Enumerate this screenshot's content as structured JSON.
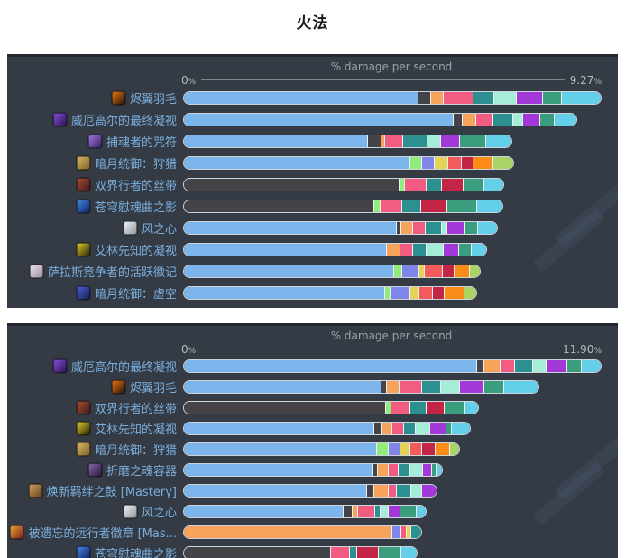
{
  "page": {
    "title": "火法",
    "pct": "%"
  },
  "colors": {
    "blue": "#7cb5ec",
    "dark": "#434348",
    "orange": "#f7a35c",
    "pink": "#f15c80",
    "teal": "#2b908f",
    "mint": "#a5ecd9",
    "purple": "#a338d8",
    "seagreen": "#3a9d7e",
    "skyblue": "#64cfe9",
    "lgreen": "#90ed7d",
    "periwinkle": "#8085e9",
    "yellow": "#e4d354",
    "salmon": "#f45b5b",
    "crimson": "#c22546",
    "orange2": "#fb8c17",
    "ygreen": "#aad566"
  },
  "chart_data": [
    {
      "type": "bar",
      "orientation": "horizontal-stacked",
      "axis": {
        "title": "% damage per second",
        "min_label": "0",
        "max_label": "9.27",
        "max": 9.27
      },
      "legend": "none",
      "rows": [
        {
          "label": "烬翼羽毛",
          "icon": {
            "name": "ember-feather",
            "c1": "#1c120a",
            "c2": "#f07818"
          },
          "segments": [
            {
              "c": "blue",
              "v": 5.29
            },
            {
              "c": "dark",
              "v": 0.26
            },
            {
              "c": "orange",
              "v": 0.27
            },
            {
              "c": "pink",
              "v": 0.65
            },
            {
              "c": "teal",
              "v": 0.45
            },
            {
              "c": "mint",
              "v": 0.49
            },
            {
              "c": "purple",
              "v": 0.57
            },
            {
              "c": "seagreen",
              "v": 0.42
            },
            {
              "c": "skyblue",
              "v": 0.87
            }
          ]
        },
        {
          "label": "威厄高尔的最终凝视",
          "icon": {
            "name": "veil-gaze",
            "c1": "#251347",
            "c2": "#8a4de0"
          },
          "segments": [
            {
              "c": "blue",
              "v": 6.1
            },
            {
              "c": "dark",
              "v": 0.17
            },
            {
              "c": "orange",
              "v": 0.3
            },
            {
              "c": "pink",
              "v": 0.37
            },
            {
              "c": "teal",
              "v": 0.42
            },
            {
              "c": "mint",
              "v": 0.21
            },
            {
              "c": "purple",
              "v": 0.37
            },
            {
              "c": "seagreen",
              "v": 0.3
            },
            {
              "c": "skyblue",
              "v": 0.5
            }
          ]
        },
        {
          "label": "捕魂者的咒符",
          "icon": {
            "name": "soulcatcher-charm",
            "c1": "#33205a",
            "c2": "#a678e8"
          },
          "segments": [
            {
              "c": "blue",
              "v": 4.16
            },
            {
              "c": "dark",
              "v": 0.3
            },
            {
              "c": "orange",
              "v": 0.05
            },
            {
              "c": "pink",
              "v": 0.39
            },
            {
              "c": "teal",
              "v": 0.54
            },
            {
              "c": "mint",
              "v": 0.3
            },
            {
              "c": "purple",
              "v": 0.4
            },
            {
              "c": "seagreen",
              "v": 0.57
            },
            {
              "c": "skyblue",
              "v": 0.59
            }
          ]
        },
        {
          "label": "暗月统御：狩猎",
          "icon": {
            "name": "darkmoon-hunt",
            "c1": "#7a5c28",
            "c2": "#e0bc66"
          },
          "segments": [
            {
              "c": "blue",
              "v": 5.13
            },
            {
              "c": "lgreen",
              "v": 0.24
            },
            {
              "c": "periwinkle",
              "v": 0.26
            },
            {
              "c": "yellow",
              "v": 0.28
            },
            {
              "c": "salmon",
              "v": 0.3
            },
            {
              "c": "crimson",
              "v": 0.24
            },
            {
              "c": "orange2",
              "v": 0.44
            },
            {
              "c": "ygreen",
              "v": 0.44
            }
          ]
        },
        {
          "label": "双界行者的丝带",
          "icon": {
            "name": "walker-ribbon",
            "c1": "#401821",
            "c2": "#a84f2e"
          },
          "segments": [
            {
              "c": "dark",
              "v": 4.86
            },
            {
              "c": "lgreen",
              "v": 0.1
            },
            {
              "c": "pink",
              "v": 0.47
            },
            {
              "c": "teal",
              "v": 0.34
            },
            {
              "c": "crimson",
              "v": 0.47
            },
            {
              "c": "seagreen",
              "v": 0.44
            },
            {
              "c": "skyblue",
              "v": 0.44
            }
          ]
        },
        {
          "label": "苍穹慰魂曲之影",
          "icon": {
            "name": "requiem-shadow",
            "c1": "#0b1f5e",
            "c2": "#4a8ae8"
          },
          "segments": [
            {
              "c": "dark",
              "v": 4.29
            },
            {
              "c": "lgreen",
              "v": 0.13
            },
            {
              "c": "pink",
              "v": 0.47
            },
            {
              "c": "teal",
              "v": 0.4
            },
            {
              "c": "crimson",
              "v": 0.57
            },
            {
              "c": "seagreen",
              "v": 0.67
            },
            {
              "c": "skyblue",
              "v": 0.56
            }
          ]
        },
        {
          "label": "风之心",
          "icon": {
            "name": "wind-heart",
            "c1": "#8d9399",
            "c2": "#f2f5f8"
          },
          "segments": [
            {
              "c": "blue",
              "v": 4.83
            },
            {
              "c": "dark",
              "v": 0.08
            },
            {
              "c": "orange",
              "v": 0.26
            },
            {
              "c": "pink",
              "v": 0.26
            },
            {
              "c": "teal",
              "v": 0.35
            },
            {
              "c": "mint",
              "v": 0.1
            },
            {
              "c": "purple",
              "v": 0.4
            },
            {
              "c": "seagreen",
              "v": 0.27
            },
            {
              "c": "skyblue",
              "v": 0.42
            }
          ]
        },
        {
          "label": "艾林先知的凝视",
          "icon": {
            "name": "seer-gaze",
            "c1": "#201d06",
            "c2": "#ecd22a"
          },
          "segments": [
            {
              "c": "blue",
              "v": 4.59
            },
            {
              "c": "orange",
              "v": 0.3
            },
            {
              "c": "pink",
              "v": 0.27
            },
            {
              "c": "teal",
              "v": 0.27
            },
            {
              "c": "mint",
              "v": 0.37
            },
            {
              "c": "purple",
              "v": 0.34
            },
            {
              "c": "seagreen",
              "v": 0.27
            },
            {
              "c": "skyblue",
              "v": 0.32
            }
          ]
        },
        {
          "label": "萨拉斯竞争者的活跃徽记",
          "icon": {
            "name": "contender-sigil",
            "c1": "#9c8c9c",
            "c2": "#f0e4f0"
          },
          "segments": [
            {
              "c": "blue",
              "v": 4.76
            },
            {
              "c": "lgreen",
              "v": 0.17
            },
            {
              "c": "periwinkle",
              "v": 0.36
            },
            {
              "c": "yellow",
              "v": 0.11
            },
            {
              "c": "salmon",
              "v": 0.39
            },
            {
              "c": "crimson",
              "v": 0.25
            },
            {
              "c": "orange2",
              "v": 0.32
            },
            {
              "c": "ygreen",
              "v": 0.24
            }
          ]
        },
        {
          "label": "暗月统御：虚空",
          "icon": {
            "name": "darkmoon-void",
            "c1": "#141d44",
            "c2": "#5060e0"
          },
          "segments": [
            {
              "c": "blue",
              "v": 4.56
            },
            {
              "c": "lgreen",
              "v": 0.1
            },
            {
              "c": "periwinkle",
              "v": 0.44
            },
            {
              "c": "yellow",
              "v": 0.19
            },
            {
              "c": "salmon",
              "v": 0.28
            },
            {
              "c": "crimson",
              "v": 0.24
            },
            {
              "c": "orange2",
              "v": 0.44
            },
            {
              "c": "ygreen",
              "v": 0.26
            }
          ]
        }
      ]
    },
    {
      "type": "bar",
      "orientation": "horizontal-stacked",
      "axis": {
        "title": "% damage per second",
        "min_label": "0",
        "max_label": "11.90",
        "max": 11.9
      },
      "legend": "none",
      "rows": [
        {
          "label": "威厄高尔的最终凝视",
          "icon": {
            "name": "veil-gaze",
            "c1": "#251347",
            "c2": "#8a4de0"
          },
          "segments": [
            {
              "c": "blue",
              "v": 8.49
            },
            {
              "c": "dark",
              "v": 0.18
            },
            {
              "c": "orange",
              "v": 0.45
            },
            {
              "c": "pink",
              "v": 0.4
            },
            {
              "c": "teal",
              "v": 0.49
            },
            {
              "c": "mint",
              "v": 0.36
            },
            {
              "c": "purple",
              "v": 0.58
            },
            {
              "c": "seagreen",
              "v": 0.4
            },
            {
              "c": "skyblue",
              "v": 0.55
            }
          ]
        },
        {
          "label": "烬翼羽毛",
          "icon": {
            "name": "ember-feather",
            "c1": "#1c120a",
            "c2": "#f07818"
          },
          "segments": [
            {
              "c": "blue",
              "v": 5.73
            },
            {
              "c": "dark",
              "v": 0.13
            },
            {
              "c": "orange",
              "v": 0.36
            },
            {
              "c": "pink",
              "v": 0.62
            },
            {
              "c": "teal",
              "v": 0.53
            },
            {
              "c": "mint",
              "v": 0.53
            },
            {
              "c": "purple",
              "v": 0.67
            },
            {
              "c": "seagreen",
              "v": 0.55
            },
            {
              "c": "skyblue",
              "v": 1.01
            }
          ]
        },
        {
          "label": "双界行者的丝带",
          "icon": {
            "name": "walker-ribbon",
            "c1": "#401821",
            "c2": "#a84f2e"
          },
          "segments": [
            {
              "c": "dark",
              "v": 5.86
            },
            {
              "c": "lgreen",
              "v": 0.13
            },
            {
              "c": "pink",
              "v": 0.53
            },
            {
              "c": "teal",
              "v": 0.45
            },
            {
              "c": "crimson",
              "v": 0.49
            },
            {
              "c": "seagreen",
              "v": 0.58
            },
            {
              "c": "skyblue",
              "v": 0.38
            }
          ]
        },
        {
          "label": "艾林先知的凝视",
          "icon": {
            "name": "seer-gaze",
            "c1": "#201d06",
            "c2": "#ecd22a"
          },
          "segments": [
            {
              "c": "blue",
              "v": 5.55
            },
            {
              "c": "dark",
              "v": 0.22
            },
            {
              "c": "orange",
              "v": 0.27
            },
            {
              "c": "pink",
              "v": 0.31
            },
            {
              "c": "teal",
              "v": 0.31
            },
            {
              "c": "mint",
              "v": 0.4
            },
            {
              "c": "purple",
              "v": 0.45
            },
            {
              "c": "seagreen",
              "v": 0.13
            },
            {
              "c": "skyblue",
              "v": 0.53
            }
          ]
        },
        {
          "label": "暗月统御：狩猎",
          "icon": {
            "name": "darkmoon-hunt",
            "c1": "#7a5c28",
            "c2": "#e0bc66"
          },
          "segments": [
            {
              "c": "blue",
              "v": 5.64
            },
            {
              "c": "lgreen",
              "v": 0.31
            },
            {
              "c": "periwinkle",
              "v": 0.31
            },
            {
              "c": "yellow",
              "v": 0.27
            },
            {
              "c": "salmon",
              "v": 0.31
            },
            {
              "c": "crimson",
              "v": 0.36
            },
            {
              "c": "orange2",
              "v": 0.4
            },
            {
              "c": "ygreen",
              "v": 0.27
            }
          ]
        },
        {
          "label": "折磨之魂容器",
          "icon": {
            "name": "soul-vessel",
            "c1": "#281638",
            "c2": "#8a66b0"
          },
          "segments": [
            {
              "c": "blue",
              "v": 5.55
            },
            {
              "c": "dark",
              "v": 0.11
            },
            {
              "c": "orange",
              "v": 0.29
            },
            {
              "c": "pink",
              "v": 0.27
            },
            {
              "c": "teal",
              "v": 0.31
            },
            {
              "c": "mint",
              "v": 0.36
            },
            {
              "c": "purple",
              "v": 0.22
            },
            {
              "c": "seagreen",
              "v": 0.11
            },
            {
              "c": "skyblue",
              "v": 0.17
            }
          ]
        },
        {
          "label": "焕新羁绊之鼓 [Mastery]",
          "icon": {
            "name": "bond-drum",
            "c1": "#63401f",
            "c2": "#d2a35e"
          },
          "segments": [
            {
              "c": "blue",
              "v": 5.33
            },
            {
              "c": "dark",
              "v": 0.18
            },
            {
              "c": "orange",
              "v": 0.4
            },
            {
              "c": "pink",
              "v": 0.22
            },
            {
              "c": "teal",
              "v": 0.4
            },
            {
              "c": "mint",
              "v": 0.27
            },
            {
              "c": "purple",
              "v": 0.43
            }
          ]
        },
        {
          "label": "风之心",
          "icon": {
            "name": "wind-heart",
            "c1": "#8d9399",
            "c2": "#f2f5f8"
          },
          "segments": [
            {
              "c": "blue",
              "v": 4.7
            },
            {
              "c": "dark",
              "v": 0.22
            },
            {
              "c": "orange",
              "v": 0.13
            },
            {
              "c": "pink",
              "v": 0.49
            },
            {
              "c": "teal",
              "v": 0.13
            },
            {
              "c": "mint",
              "v": 0.22
            },
            {
              "c": "purple",
              "v": 0.31
            },
            {
              "c": "seagreen",
              "v": 0.45
            },
            {
              "c": "skyblue",
              "v": 0.27
            }
          ]
        },
        {
          "label": "被遗忘的远行者徽章 [Mas...",
          "icon": {
            "name": "wayfarer-badge",
            "c1": "#7c1c16",
            "c2": "#e8a83a"
          },
          "segments": [
            {
              "c": "orange",
              "v": 6.04
            },
            {
              "c": "periwinkle",
              "v": 0.22
            },
            {
              "c": "pink",
              "v": 0.13
            },
            {
              "c": "yellow",
              "v": 0.13
            },
            {
              "c": "teal",
              "v": 0.27
            }
          ]
        },
        {
          "label": "苍穹慰魂曲之影",
          "icon": {
            "name": "requiem-shadow",
            "c1": "#0b1f5e",
            "c2": "#4a8ae8"
          },
          "segments": [
            {
              "c": "dark",
              "v": 4.26
            },
            {
              "c": "pink",
              "v": 0.53
            },
            {
              "c": "teal",
              "v": 0.18
            },
            {
              "c": "crimson",
              "v": 0.62
            },
            {
              "c": "seagreen",
              "v": 0.62
            },
            {
              "c": "skyblue",
              "v": 0.47
            }
          ]
        }
      ]
    }
  ]
}
